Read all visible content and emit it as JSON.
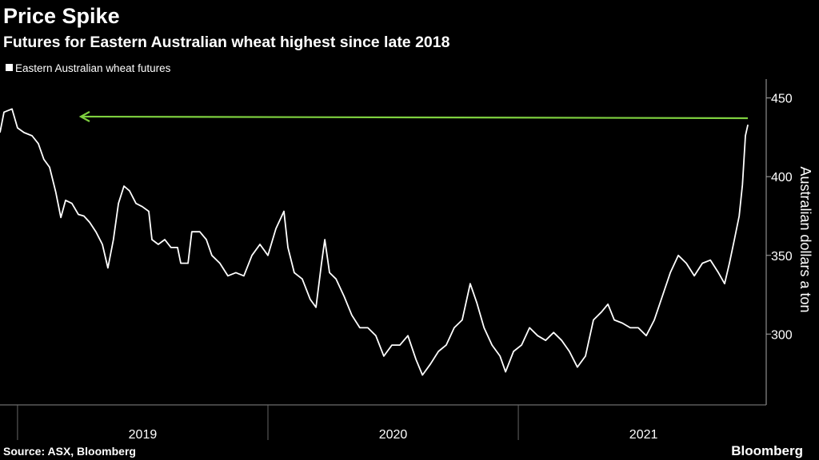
{
  "chart_data": {
    "type": "line",
    "title": "Price Spike",
    "subtitle": "Futures for Eastern Australian wheat highest since late 2018",
    "y_axis_label": "Australian dollars a ton",
    "source": "Source: ASX, Bloomberg",
    "brand": "Bloomberg",
    "xlim": [
      2018.93,
      2021.99
    ],
    "xticks": [
      2019,
      2020,
      2021
    ],
    "ylim": [
      255,
      462
    ],
    "yticks": [
      300,
      350,
      400,
      450
    ],
    "y_axis_side": "right",
    "legend": "top-left",
    "x": [
      2018.93,
      2018.946,
      2018.978,
      2019.0,
      2019.026,
      2019.058,
      2019.083,
      2019.105,
      2019.128,
      2019.153,
      2019.173,
      2019.192,
      2019.217,
      2019.243,
      2019.265,
      2019.288,
      2019.313,
      2019.339,
      2019.361,
      2019.383,
      2019.403,
      2019.425,
      2019.447,
      2019.473,
      2019.498,
      2019.524,
      2019.537,
      2019.562,
      2019.588,
      2019.613,
      2019.639,
      2019.652,
      2019.681,
      2019.696,
      2019.728,
      2019.754,
      2019.776,
      2019.808,
      2019.84,
      2019.872,
      2019.904,
      2019.936,
      2019.968,
      2020.0,
      2020.032,
      2020.064,
      2020.08,
      2020.105,
      2020.137,
      2020.169,
      2020.192,
      2020.214,
      2020.227,
      2020.246,
      2020.272,
      2020.304,
      2020.335,
      2020.367,
      2020.399,
      2020.431,
      2020.463,
      2020.495,
      2020.527,
      2020.559,
      2020.591,
      2020.617,
      2020.649,
      2020.681,
      2020.712,
      2020.744,
      2020.776,
      2020.808,
      2020.834,
      2020.863,
      2020.895,
      2020.927,
      2020.949,
      2020.981,
      2021.013,
      2021.045,
      2021.077,
      2021.109,
      2021.141,
      2021.173,
      2021.204,
      2021.236,
      2021.268,
      2021.3,
      2021.332,
      2021.358,
      2021.383,
      2021.415,
      2021.447,
      2021.479,
      2021.511,
      2021.543,
      2021.575,
      2021.607,
      2021.639,
      2021.671,
      2021.703,
      2021.735,
      2021.767,
      2021.799,
      2021.824,
      2021.843,
      2021.863,
      2021.882,
      2021.895,
      2021.907,
      2021.917
    ],
    "series": [
      {
        "name": "Eastern Australian wheat futures",
        "color": "#ffffff",
        "values": [
          428,
          441,
          443,
          431,
          428,
          426,
          421,
          411,
          406,
          390,
          374,
          385,
          383,
          376,
          375,
          371,
          365,
          357,
          342,
          360,
          383,
          394,
          391,
          383,
          381,
          378,
          360,
          357,
          360,
          355,
          355,
          345,
          345,
          365,
          365,
          360,
          350,
          345,
          337,
          339,
          337,
          350,
          357,
          350,
          367,
          378,
          355,
          339,
          335,
          322,
          317,
          345,
          360,
          339,
          335,
          324,
          312,
          304,
          304,
          299,
          286,
          293,
          293,
          299,
          284,
          274,
          281,
          289,
          293,
          304,
          309,
          332,
          320,
          304,
          293,
          286,
          276,
          289,
          293,
          304,
          299,
          296,
          301,
          296,
          289,
          279,
          286,
          309,
          314,
          319,
          309,
          307,
          304,
          304,
          299,
          309,
          324,
          339,
          350,
          345,
          337,
          345,
          347,
          339,
          332,
          345,
          360,
          375,
          395,
          426,
          433
        ]
      }
    ]
  }
}
